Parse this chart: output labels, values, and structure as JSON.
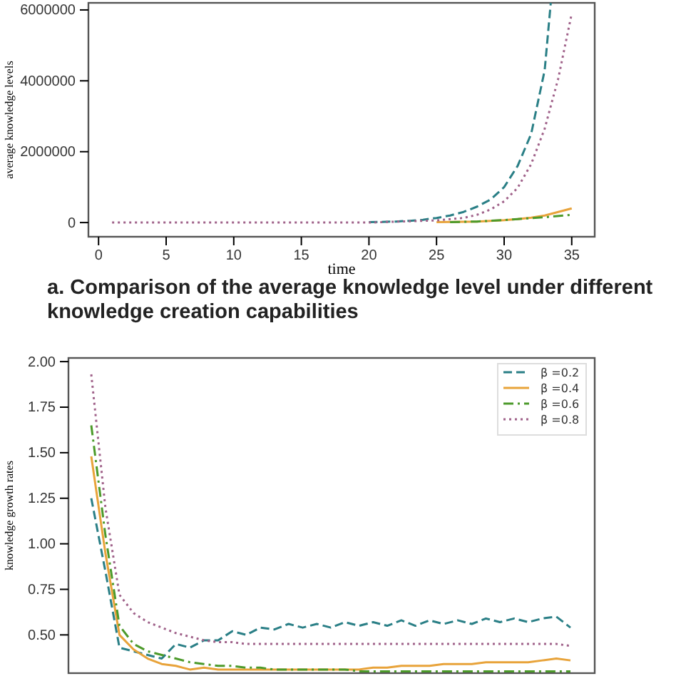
{
  "chart_data": [
    {
      "type": "line",
      "xlabel": "time",
      "ylabel": "average knowledge levels",
      "xlim": [
        -0.75,
        36.7
      ],
      "ylim": [
        -400000,
        6200000
      ],
      "xticks": [
        0,
        5,
        10,
        15,
        20,
        25,
        30,
        35
      ],
      "yticks": [
        0,
        2000000,
        4000000,
        6000000
      ],
      "grid": false,
      "legend": false,
      "annotations": [
        "a. Comparison of the average knowledge level under different knowledge creation capabilities"
      ],
      "series": [
        {
          "color": "#2a7f86",
          "line_style": "dashed",
          "x": [
            20,
            22,
            23,
            24,
            25,
            26,
            27,
            28,
            29,
            30,
            31,
            32,
            33,
            33.45
          ],
          "values": [
            10000,
            30000,
            50000,
            80000,
            130000,
            200000,
            300000,
            450000,
            650000,
            1000000,
            1600000,
            2500000,
            4300000,
            6200000
          ]
        },
        {
          "color": "#e8a33a",
          "line_style": "solid",
          "x": [
            25,
            28,
            30,
            31,
            32,
            33,
            34,
            35
          ],
          "values": [
            10000,
            30000,
            70000,
            100000,
            140000,
            200000,
            300000,
            400000
          ]
        },
        {
          "color": "#4c9a2a",
          "line_style": "dashdot",
          "x": [
            26,
            28,
            30,
            31,
            33,
            35
          ],
          "values": [
            10000,
            30000,
            70000,
            100000,
            150000,
            220000
          ]
        },
        {
          "color": "#a0628a",
          "line_style": "dotted",
          "x": [
            1,
            5,
            10,
            15,
            20,
            25,
            27,
            28,
            29,
            30,
            31,
            32,
            33,
            34,
            35
          ],
          "values": [
            0,
            0,
            0,
            0,
            0,
            60000,
            130000,
            220000,
            370000,
            600000,
            980000,
            1650000,
            2650000,
            4060000,
            5900000
          ]
        }
      ]
    },
    {
      "type": "line",
      "ylabel": "knowledge growth rates",
      "ylim": [
        0.29,
        2.02
      ],
      "yticks": [
        {
          "value": 0.5,
          "label": "0.50"
        },
        {
          "value": 0.75,
          "label": "0.75"
        },
        {
          "value": 1,
          "label": "1.00"
        },
        {
          "value": 1.25,
          "label": "1.25"
        },
        {
          "value": 1.5,
          "label": "1.50"
        },
        {
          "value": 1.75,
          "label": "1.75"
        },
        {
          "value": 2,
          "label": "2.00"
        }
      ],
      "tick_labels": "y",
      "grid": false,
      "legend": "top right",
      "categories": [
        null,
        null,
        null,
        null,
        null,
        null,
        null,
        null,
        null,
        null,
        null,
        null,
        null,
        null,
        null,
        null,
        null,
        null,
        null,
        null,
        null,
        null,
        null,
        null,
        null,
        null,
        null,
        null,
        null,
        null,
        null,
        null,
        null,
        null,
        null
      ],
      "series": [
        {
          "name": "β =0.2",
          "color": "#2a7f86",
          "line_style": "dashed",
          "values": [
            1.25,
            0.85,
            0.43,
            0.41,
            0.39,
            0.37,
            0.45,
            0.43,
            0.47,
            0.47,
            0.52,
            0.5,
            0.54,
            0.53,
            0.56,
            0.54,
            0.56,
            0.54,
            0.57,
            0.55,
            0.57,
            0.55,
            0.58,
            0.55,
            0.58,
            0.56,
            0.58,
            0.56,
            0.59,
            0.57,
            0.59,
            0.57,
            0.59,
            0.6,
            0.54
          ]
        },
        {
          "name": "β =0.4",
          "color": "#e8a33a",
          "line_style": "solid",
          "values": [
            1.48,
            0.95,
            0.5,
            0.42,
            0.37,
            0.34,
            0.33,
            0.31,
            0.32,
            0.31,
            0.31,
            0.31,
            0.31,
            0.31,
            0.31,
            0.31,
            0.31,
            0.31,
            0.31,
            0.31,
            0.32,
            0.32,
            0.33,
            0.33,
            0.33,
            0.34,
            0.34,
            0.34,
            0.35,
            0.35,
            0.35,
            0.35,
            0.36,
            0.37,
            0.36
          ]
        },
        {
          "name": "β =0.6",
          "color": "#4c9a2a",
          "line_style": "dashdot",
          "values": [
            1.65,
            1.05,
            0.55,
            0.45,
            0.41,
            0.39,
            0.37,
            0.35,
            0.34,
            0.33,
            0.33,
            0.32,
            0.32,
            0.31,
            0.31,
            0.31,
            0.31,
            0.31,
            0.31,
            0.3,
            0.3,
            0.3,
            0.3,
            0.3,
            0.3,
            0.3,
            0.3,
            0.3,
            0.3,
            0.3,
            0.3,
            0.3,
            0.3,
            0.3,
            0.3
          ]
        },
        {
          "name": "β =0.8",
          "color": "#a0628a",
          "line_style": "dotted",
          "values": [
            1.93,
            1.2,
            0.72,
            0.62,
            0.57,
            0.54,
            0.51,
            0.49,
            0.47,
            0.46,
            0.46,
            0.45,
            0.45,
            0.45,
            0.45,
            0.45,
            0.45,
            0.45,
            0.45,
            0.45,
            0.45,
            0.45,
            0.45,
            0.45,
            0.45,
            0.45,
            0.45,
            0.45,
            0.45,
            0.45,
            0.45,
            0.45,
            0.45,
            0.45,
            0.44
          ]
        }
      ]
    }
  ]
}
